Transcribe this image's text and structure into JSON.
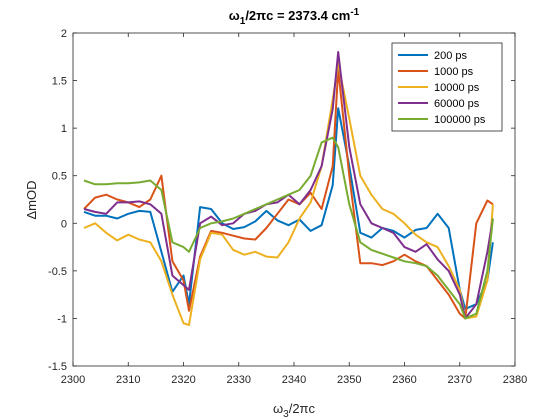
{
  "chart_data": {
    "type": "line",
    "title": {
      "pre": "ω",
      "pre_sub": "1",
      "mid": "/2πc = 2373.4 cm",
      "sup": "-1"
    },
    "xlabel": {
      "main": "ω",
      "sub": "3",
      "rest": "/2πc"
    },
    "ylabel": "ΔmOD",
    "xlim": [
      2300,
      2380
    ],
    "ylim": [
      -1.5,
      2
    ],
    "xticks": [
      2300,
      2310,
      2320,
      2330,
      2340,
      2350,
      2360,
      2370,
      2380
    ],
    "yticks": [
      -1.5,
      -1,
      -0.5,
      0,
      0.5,
      1,
      1.5,
      2
    ],
    "legend_position": "top-right",
    "grid": false,
    "x": [
      2302,
      2304,
      2306,
      2308,
      2310,
      2312,
      2314,
      2316,
      2318,
      2320,
      2321,
      2323,
      2325,
      2327,
      2329,
      2331,
      2333,
      2335,
      2337,
      2339,
      2341,
      2343,
      2345,
      2347,
      2348,
      2350,
      2352,
      2354,
      2356,
      2358,
      2360,
      2362,
      2364,
      2366,
      2368,
      2370,
      2371,
      2373,
      2375,
      2376
    ],
    "series": [
      {
        "name": "200 ps",
        "color": "#0072BD",
        "values": [
          0.12,
          0.08,
          0.08,
          0.05,
          0.1,
          0.13,
          0.12,
          -0.3,
          -0.72,
          -0.55,
          -0.85,
          0.17,
          0.15,
          0.0,
          -0.06,
          -0.04,
          0.02,
          0.13,
          0.03,
          -0.02,
          0.04,
          -0.08,
          -0.02,
          0.4,
          1.21,
          0.6,
          -0.1,
          -0.15,
          -0.05,
          -0.08,
          -0.15,
          -0.07,
          -0.05,
          0.1,
          -0.05,
          -0.7,
          -0.9,
          -0.85,
          -0.6,
          -0.2
        ]
      },
      {
        "name": "1000 ps",
        "color": "#D95319",
        "values": [
          0.15,
          0.27,
          0.3,
          0.25,
          0.22,
          0.17,
          0.25,
          0.5,
          -0.4,
          -0.6,
          -0.92,
          -0.35,
          -0.08,
          -0.1,
          -0.13,
          -0.16,
          -0.17,
          -0.05,
          0.1,
          0.25,
          0.2,
          0.32,
          0.15,
          0.6,
          1.62,
          0.5,
          -0.42,
          -0.42,
          -0.44,
          -0.4,
          -0.33,
          -0.4,
          -0.45,
          -0.6,
          -0.75,
          -0.95,
          -1.0,
          0.0,
          0.24,
          0.2
        ]
      },
      {
        "name": "10000 ps",
        "color": "#EDB120",
        "values": [
          -0.05,
          0.0,
          -0.1,
          -0.18,
          -0.12,
          -0.17,
          -0.2,
          -0.4,
          -0.75,
          -1.05,
          -1.07,
          -0.38,
          -0.1,
          -0.12,
          -0.28,
          -0.33,
          -0.3,
          -0.35,
          -0.36,
          -0.2,
          0.05,
          0.22,
          0.6,
          1.3,
          1.68,
          1.1,
          0.5,
          0.3,
          0.15,
          0.1,
          0.0,
          -0.12,
          -0.2,
          -0.25,
          -0.45,
          -0.7,
          -1.0,
          -0.98,
          -0.6,
          0.2
        ]
      },
      {
        "name": "60000 ps",
        "color": "#7E2F8E",
        "values": [
          0.15,
          0.12,
          0.1,
          0.22,
          0.22,
          0.23,
          0.2,
          0.1,
          -0.55,
          -0.65,
          -0.7,
          0.0,
          0.07,
          -0.02,
          0.0,
          0.1,
          0.13,
          0.2,
          0.22,
          0.3,
          0.2,
          0.35,
          0.6,
          1.2,
          1.8,
          0.8,
          0.2,
          0.0,
          -0.05,
          -0.1,
          -0.25,
          -0.3,
          -0.22,
          -0.38,
          -0.5,
          -0.75,
          -1.0,
          -0.85,
          -0.3,
          0.05
        ]
      },
      {
        "name": "100000 ps",
        "color": "#77AC30",
        "values": [
          0.45,
          0.41,
          0.41,
          0.42,
          0.42,
          0.43,
          0.45,
          0.35,
          -0.2,
          -0.25,
          -0.3,
          -0.05,
          0.0,
          0.02,
          0.05,
          0.1,
          0.15,
          0.2,
          0.25,
          0.3,
          0.35,
          0.5,
          0.85,
          0.9,
          0.8,
          0.2,
          -0.2,
          -0.28,
          -0.32,
          -0.36,
          -0.4,
          -0.42,
          -0.45,
          -0.55,
          -0.7,
          -0.85,
          -1.0,
          -0.95,
          -0.5,
          0.05
        ]
      }
    ]
  }
}
